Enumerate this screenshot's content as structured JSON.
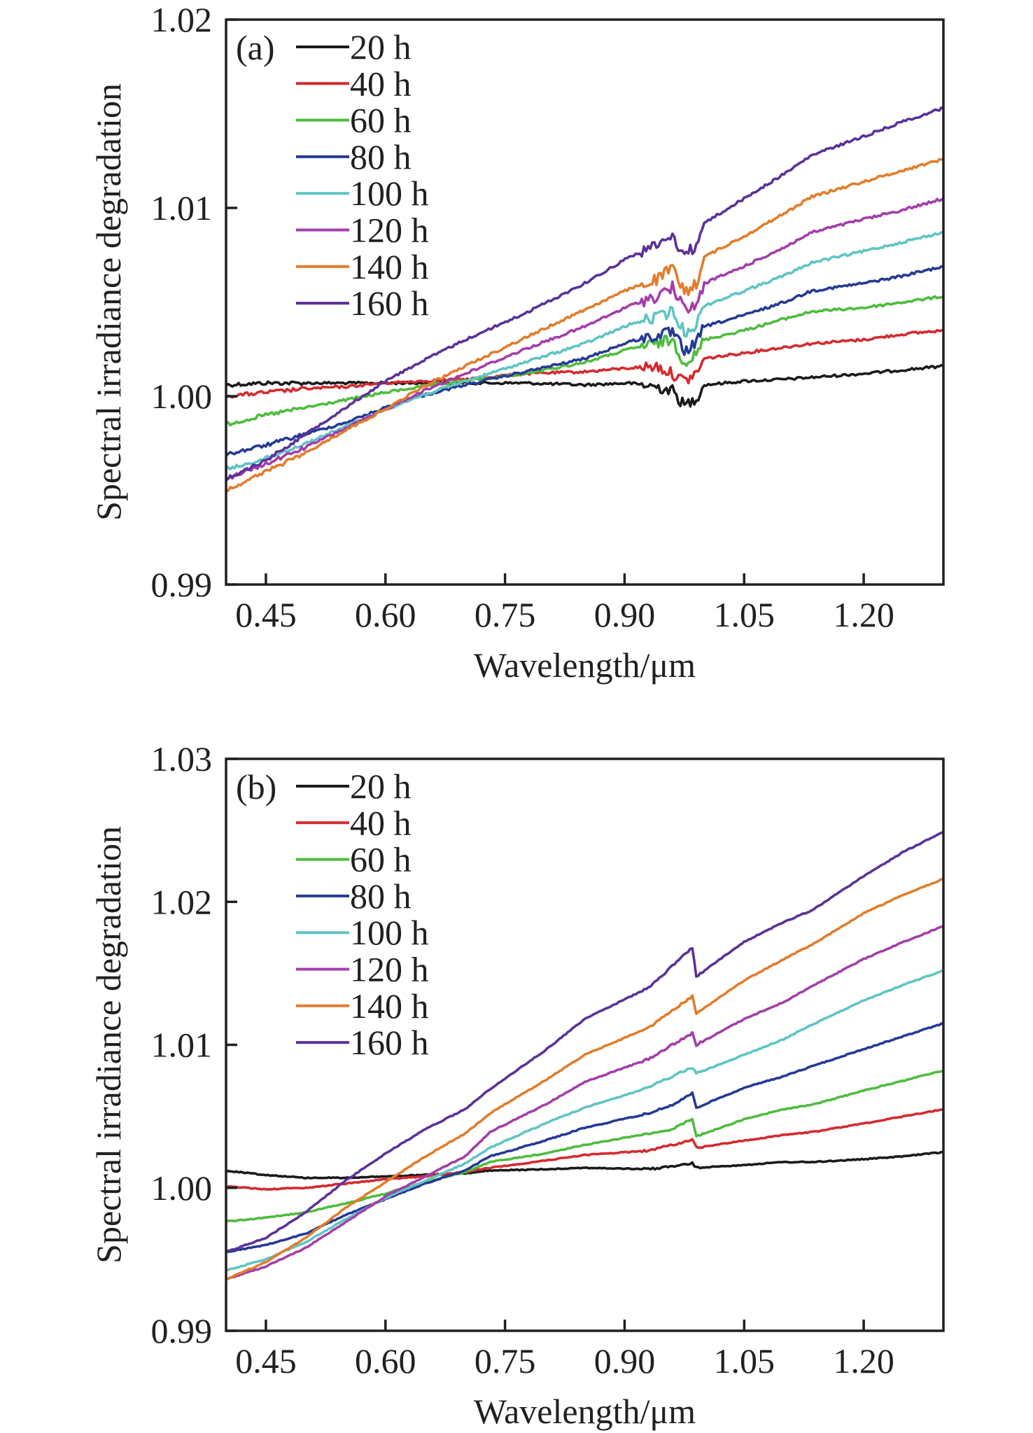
{
  "chart_data": [
    {
      "panel_label": "(a)",
      "type": "line",
      "title": "",
      "xlabel": "Wavelength/μm",
      "ylabel": "Spectral irradiance degradation",
      "xlim": [
        0.4,
        1.3
      ],
      "ylim": [
        0.99,
        1.02
      ],
      "xticks": [
        0.45,
        0.6,
        0.75,
        0.9,
        1.05,
        1.2
      ],
      "xtick_labels": [
        "0.45",
        "0.60",
        "0.75",
        "0.90",
        "1.05",
        "1.20"
      ],
      "yticks": [
        0.99,
        1.0,
        1.01,
        1.02
      ],
      "ytick_labels": [
        "0.99",
        "1.00",
        "1.01",
        "1.02"
      ],
      "grid": false,
      "legend_position": "top-left",
      "x": [
        0.4,
        0.45,
        0.5,
        0.55,
        0.6,
        0.643,
        0.7,
        0.775,
        0.85,
        0.906,
        0.94,
        0.96,
        0.975,
        0.99,
        1.0,
        1.05,
        1.1,
        1.135,
        1.2,
        1.25,
        1.3
      ],
      "series": [
        {
          "name": "20 h",
          "color": "#1a1a1a",
          "values": [
            1.0006,
            1.0007,
            1.0007,
            1.0007,
            1.0007,
            1.0007,
            1.0007,
            1.0007,
            1.0006,
            1.0007,
            1.0005,
            1.0003,
            0.9995,
            0.9999,
            1.0006,
            1.0008,
            1.0009,
            1.001,
            1.0012,
            1.0014,
            1.0016
          ]
        },
        {
          "name": "40 h",
          "color": "#d42a2f",
          "values": [
            1.0,
            1.0002,
            1.0004,
            1.0005,
            1.0007,
            1.0008,
            1.0009,
            1.0012,
            1.0013,
            1.0015,
            1.0016,
            1.0012,
            1.0008,
            1.0012,
            1.002,
            1.0023,
            1.0026,
            1.0028,
            1.003,
            1.0033,
            1.0035
          ]
        },
        {
          "name": "60 h",
          "color": "#4ebc3e",
          "values": [
            0.9985,
            0.999,
            0.9994,
            0.9998,
            1.0002,
            1.0005,
            1.0008,
            1.0012,
            1.0018,
            1.0025,
            1.0028,
            1.003,
            1.0018,
            1.0022,
            1.003,
            1.0035,
            1.0041,
            1.0045,
            1.0047,
            1.005,
            1.0053
          ]
        },
        {
          "name": "80 h",
          "color": "#253a93",
          "values": [
            0.9969,
            0.9974,
            0.998,
            0.9986,
            0.9994,
            1.0,
            1.0006,
            1.0013,
            1.002,
            1.0029,
            1.0032,
            1.0034,
            1.0024,
            1.0028,
            1.0037,
            1.0043,
            1.005,
            1.0056,
            1.006,
            1.0064,
            1.0069
          ]
        },
        {
          "name": "100 h",
          "color": "#5fc4c4",
          "values": [
            0.9961,
            0.9967,
            0.9975,
            0.9984,
            0.9993,
            1.0,
            1.0008,
            1.0018,
            1.0028,
            1.0038,
            1.0042,
            1.0045,
            1.0034,
            1.0038,
            1.0048,
            1.0056,
            1.0064,
            1.0071,
            1.0077,
            1.0082,
            1.0087
          ]
        },
        {
          "name": "120 h",
          "color": "#a33eaa",
          "values": [
            0.9956,
            0.9964,
            0.9973,
            0.9983,
            0.9993,
            1.0002,
            1.0012,
            1.0025,
            1.0037,
            1.0048,
            1.0053,
            1.0058,
            1.0046,
            1.0048,
            1.006,
            1.0069,
            1.0079,
            1.0087,
            1.0094,
            1.0099,
            1.0105
          ]
        },
        {
          "name": "140 h",
          "color": "#e17d2b",
          "values": [
            0.995,
            0.996,
            0.997,
            0.9982,
            0.9993,
            1.0004,
            1.0016,
            1.0031,
            1.0046,
            1.0057,
            1.0062,
            1.0068,
            1.0055,
            1.006,
            1.0074,
            1.0085,
            1.0097,
            1.0106,
            1.0114,
            1.012,
            1.0126
          ]
        },
        {
          "name": "160 h",
          "color": "#5a3297",
          "values": [
            0.9956,
            0.9966,
            0.998,
            0.9994,
            1.0008,
            1.0018,
            1.003,
            1.0044,
            1.006,
            1.0074,
            1.008,
            1.0085,
            1.0075,
            1.008,
            1.0092,
            1.0105,
            1.0118,
            1.0128,
            1.0138,
            1.0146,
            1.0153
          ]
        }
      ]
    },
    {
      "panel_label": "(b)",
      "type": "line",
      "title": "",
      "xlabel": "Wavelength/μm",
      "ylabel": "Spectral irradiance degradation",
      "xlim": [
        0.4,
        1.3
      ],
      "ylim": [
        0.99,
        1.03
      ],
      "xticks": [
        0.45,
        0.6,
        0.75,
        0.9,
        1.05,
        1.2
      ],
      "xtick_labels": [
        "0.45",
        "0.60",
        "0.75",
        "0.90",
        "1.05",
        "1.20"
      ],
      "yticks": [
        0.99,
        1.0,
        1.01,
        1.02,
        1.03
      ],
      "ytick_labels": [
        "0.99",
        "1.00",
        "1.01",
        "1.02",
        "1.03"
      ],
      "grid": false,
      "legend_position": "top-left",
      "x": [
        0.4,
        0.45,
        0.5,
        0.55,
        0.6,
        0.65,
        0.7,
        0.731,
        0.8,
        0.85,
        0.93,
        0.96,
        0.985,
        0.99,
        1.05,
        1.1,
        1.135,
        1.2,
        1.25,
        1.3
      ],
      "series": [
        {
          "name": "20 h",
          "color": "#1a1a1a",
          "values": [
            1.0012,
            1.0009,
            1.0007,
            1.0007,
            1.0008,
            1.0009,
            1.001,
            1.0012,
            1.0013,
            1.0014,
            1.0013,
            1.0015,
            1.0017,
            1.0014,
            1.0016,
            1.0018,
            1.0018,
            1.002,
            1.0022,
            1.0025
          ]
        },
        {
          "name": "40 h",
          "color": "#d42a2f",
          "values": [
            1.0001,
            0.9999,
            1.0,
            1.0003,
            1.0006,
            1.0008,
            1.0011,
            1.0014,
            1.0019,
            1.0023,
            1.0026,
            1.003,
            1.0034,
            1.0028,
            1.0033,
            1.0037,
            1.0039,
            1.0045,
            1.005,
            1.0055
          ]
        },
        {
          "name": "60 h",
          "color": "#4ebc3e",
          "values": [
            0.99765,
            0.9979,
            0.9983,
            0.9989,
            0.9996,
            1.0004,
            1.0011,
            1.0018,
            1.0024,
            1.003,
            1.0038,
            1.0041,
            1.0048,
            1.0036,
            1.0048,
            1.0055,
            1.0058,
            1.0068,
            1.0075,
            1.0082
          ]
        },
        {
          "name": "80 h",
          "color": "#253a93",
          "values": [
            0.9955,
            0.996,
            0.9968,
            0.9981,
            0.9992,
            1.0003,
            1.0012,
            1.0022,
            1.0033,
            1.0042,
            1.0052,
            1.0058,
            1.0066,
            1.0056,
            1.007,
            1.0078,
            1.0085,
            1.0097,
            1.0106,
            1.0115
          ]
        },
        {
          "name": "100 h",
          "color": "#5fc4c4",
          "values": [
            0.99422,
            0.995,
            0.9962,
            0.9978,
            0.9993,
            1.0005,
            1.0017,
            1.0028,
            1.0045,
            1.0056,
            1.007,
            1.0078,
            1.0084,
            1.008,
            1.0093,
            1.0104,
            1.0114,
            1.0131,
            1.0142,
            1.0152
          ]
        },
        {
          "name": "120 h",
          "color": "#a33eaa",
          "values": [
            0.9936,
            0.9945,
            0.9958,
            0.9976,
            0.9994,
            1.0008,
            1.0022,
            1.0039,
            1.0058,
            1.0074,
            1.009,
            1.01,
            1.0108,
            1.01,
            1.0118,
            1.013,
            1.0141,
            1.016,
            1.0172,
            1.0183
          ]
        },
        {
          "name": "140 h",
          "color": "#e17d2b",
          "values": [
            0.9936,
            0.9948,
            0.9965,
            0.9986,
            1.0004,
            1.0022,
            1.0038,
            1.0052,
            1.0075,
            1.0093,
            1.0112,
            1.0124,
            1.0134,
            1.0122,
            1.0145,
            1.016,
            1.017,
            1.0192,
            1.0205,
            1.0216
          ]
        },
        {
          "name": "160 h",
          "color": "#5a3297",
          "values": [
            0.9955,
            0.9965,
            0.9983,
            1.0005,
            1.0024,
            1.0041,
            1.0055,
            1.0069,
            1.0096,
            1.0118,
            1.014,
            1.0155,
            1.0168,
            1.0148,
            1.0172,
            1.0186,
            1.0194,
            1.0218,
            1.0235,
            1.0249
          ]
        }
      ]
    }
  ]
}
